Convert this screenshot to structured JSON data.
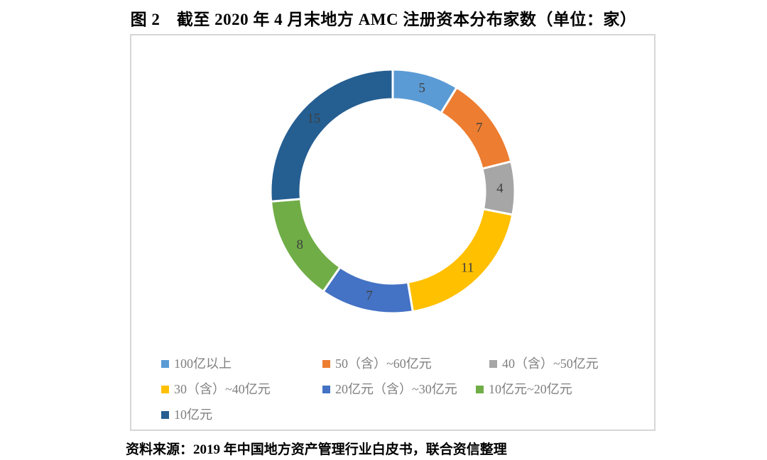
{
  "title": "图 2　截至 2020 年 4 月末地方 AMC 注册资本分布家数（单位：家）",
  "source_note": "资料来源：2019 年中国地方资产管理行业白皮书，联合资信整理",
  "chart_data": {
    "type": "pie",
    "subtype": "donut",
    "title": "截至2020年4月末地方AMC注册资本分布家数",
    "unit": "家",
    "categories": [
      "100亿以上",
      "50（含）~60亿元",
      "40（含）~50亿元",
      "30（含）~40亿元",
      "20亿元（含）~30亿元",
      "10亿元~20亿元",
      "10亿元"
    ],
    "values": [
      5,
      7,
      4,
      11,
      7,
      8,
      15
    ],
    "colors": [
      "#5B9BD5",
      "#ED7D31",
      "#A6A6A6",
      "#FFC000",
      "#4472C4",
      "#70AD47",
      "#255E91"
    ],
    "total": 57,
    "start_angle_deg": 0,
    "direction": "clockwise",
    "data_labels": "shown inside ring",
    "label_color": "#3f3f3f",
    "legend_position": "bottom",
    "background": "#ffffff"
  }
}
